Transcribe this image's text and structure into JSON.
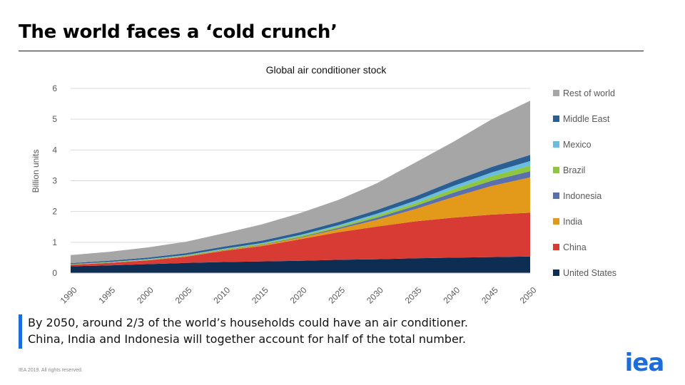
{
  "slide": {
    "title": "The world faces a ‘cold crunch’",
    "caption_line1": "By 2050, around 2/3 of the world’s households could have an air conditioner.",
    "caption_line2": "China, India and Indonesia will together account for half of the total number.",
    "footer": "IEA 2019.  All rights reserved.",
    "logo_text": "iea"
  },
  "colors": {
    "accent": "#1c6ddb",
    "logo": "#1c6ddb"
  },
  "chart_data": {
    "type": "area",
    "stacked": true,
    "title": "Global air conditioner stock",
    "xlabel": "",
    "ylabel": "Billion units",
    "xlim": [
      1990,
      2050
    ],
    "ylim": [
      0,
      6
    ],
    "yticks": [
      0,
      1,
      2,
      3,
      4,
      5,
      6
    ],
    "xticks": [
      1990,
      1995,
      2000,
      2005,
      2010,
      2015,
      2020,
      2025,
      2030,
      2035,
      2040,
      2045,
      2050
    ],
    "grid": true,
    "legend_position": "right",
    "x": [
      1990,
      1995,
      2000,
      2005,
      2010,
      2015,
      2020,
      2025,
      2030,
      2035,
      2040,
      2045,
      2050
    ],
    "series": [
      {
        "name": "United States",
        "color": "#0d2d52",
        "values": [
          0.22,
          0.25,
          0.29,
          0.33,
          0.36,
          0.38,
          0.4,
          0.43,
          0.45,
          0.48,
          0.5,
          0.52,
          0.54
        ]
      },
      {
        "name": "China",
        "color": "#d83a34",
        "values": [
          0.05,
          0.08,
          0.12,
          0.2,
          0.36,
          0.5,
          0.7,
          0.9,
          1.06,
          1.2,
          1.3,
          1.38,
          1.42
        ]
      },
      {
        "name": "India",
        "color": "#e3991a",
        "values": [
          0.005,
          0.007,
          0.01,
          0.015,
          0.02,
          0.03,
          0.05,
          0.1,
          0.22,
          0.4,
          0.67,
          0.93,
          1.15
        ]
      },
      {
        "name": "Indonesia",
        "color": "#5b6fad",
        "values": [
          0.003,
          0.004,
          0.006,
          0.008,
          0.01,
          0.015,
          0.02,
          0.04,
          0.07,
          0.1,
          0.14,
          0.17,
          0.2
        ]
      },
      {
        "name": "Brazil",
        "color": "#8ec63f",
        "values": [
          0.01,
          0.012,
          0.015,
          0.02,
          0.025,
          0.03,
          0.04,
          0.05,
          0.07,
          0.09,
          0.12,
          0.15,
          0.18
        ]
      },
      {
        "name": "Mexico",
        "color": "#6bbde0",
        "values": [
          0.005,
          0.007,
          0.01,
          0.012,
          0.015,
          0.02,
          0.03,
          0.04,
          0.06,
          0.08,
          0.1,
          0.12,
          0.15
        ]
      },
      {
        "name": "Middle East",
        "color": "#2b5f94",
        "values": [
          0.03,
          0.04,
          0.05,
          0.06,
          0.07,
          0.08,
          0.09,
          0.1,
          0.12,
          0.14,
          0.16,
          0.18,
          0.2
        ]
      },
      {
        "name": "Rest of world",
        "color": "#a6a6a6",
        "values": [
          0.26,
          0.29,
          0.33,
          0.37,
          0.43,
          0.53,
          0.62,
          0.72,
          0.87,
          1.1,
          1.28,
          1.55,
          1.76
        ]
      }
    ]
  }
}
